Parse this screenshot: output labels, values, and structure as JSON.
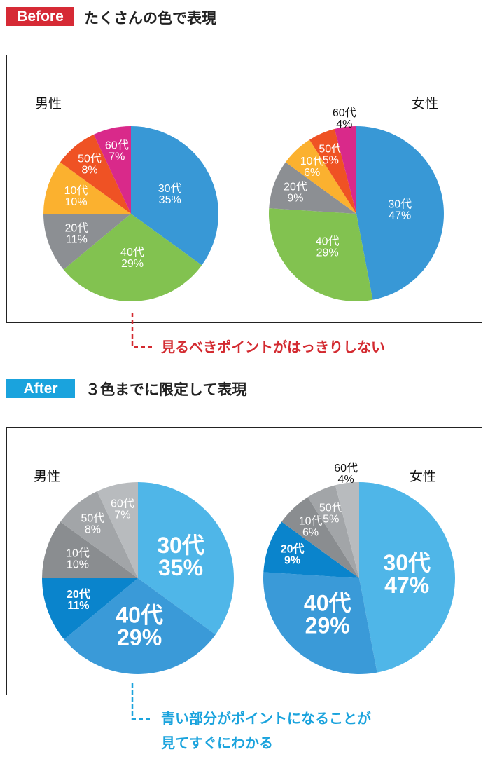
{
  "before": {
    "badge": "Before",
    "badge_color": "#d62a35",
    "heading": "たくさんの色で表現",
    "note": "見るべきポイントがはっきりしない",
    "note_color": "#d32a30"
  },
  "after": {
    "badge": "After",
    "badge_color": "#1aa3dd",
    "heading": "３色までに限定して表現",
    "note_line1": "青い部分がポイントになることが",
    "note_line2": "見てすぐにわかる",
    "note_color": "#1aa3dd"
  },
  "chart_data": [
    {
      "type": "pie",
      "section": "before",
      "title": "男性",
      "categories": [
        "30代",
        "40代",
        "20代",
        "10代",
        "50代",
        "60代"
      ],
      "values": [
        35,
        29,
        11,
        10,
        8,
        7
      ],
      "labels": [
        "35%",
        "29%",
        "11%",
        "10%",
        "8%",
        "7%"
      ],
      "colors": [
        "#3898d6",
        "#82c250",
        "#8c8f93",
        "#fbb12f",
        "#ef5224",
        "#d9298a"
      ]
    },
    {
      "type": "pie",
      "section": "before",
      "title": "女性",
      "categories": [
        "30代",
        "40代",
        "20代",
        "10代",
        "50代",
        "60代"
      ],
      "values": [
        47,
        29,
        9,
        6,
        5,
        4
      ],
      "labels": [
        "47%",
        "29%",
        "9%",
        "6%",
        "5%",
        "4%"
      ],
      "colors": [
        "#3898d6",
        "#82c250",
        "#8c8f93",
        "#fbb12f",
        "#ef5224",
        "#d9298a"
      ]
    },
    {
      "type": "pie",
      "section": "after",
      "title": "男性",
      "categories": [
        "30代",
        "40代",
        "20代",
        "10代",
        "50代",
        "60代"
      ],
      "values": [
        35,
        29,
        11,
        10,
        8,
        7
      ],
      "labels": [
        "35%",
        "29%",
        "11%",
        "10%",
        "8%",
        "7%"
      ],
      "colors": [
        "#4fb6e8",
        "#3a9ad8",
        "#0a84cc",
        "#8a8d90",
        "#a2a5a8",
        "#b8bbbe"
      ],
      "emphasized": [
        "30代",
        "40代",
        "20代"
      ]
    },
    {
      "type": "pie",
      "section": "after",
      "title": "女性",
      "categories": [
        "30代",
        "40代",
        "20代",
        "10代",
        "50代",
        "60代"
      ],
      "values": [
        47,
        29,
        9,
        6,
        5,
        4
      ],
      "labels": [
        "47%",
        "29%",
        "9%",
        "6%",
        "5%",
        "4%"
      ],
      "colors": [
        "#4fb6e8",
        "#3a9ad8",
        "#0a84cc",
        "#8a8d90",
        "#a2a5a8",
        "#b8bbbe"
      ],
      "emphasized": [
        "30代",
        "40代",
        "20代"
      ]
    }
  ]
}
